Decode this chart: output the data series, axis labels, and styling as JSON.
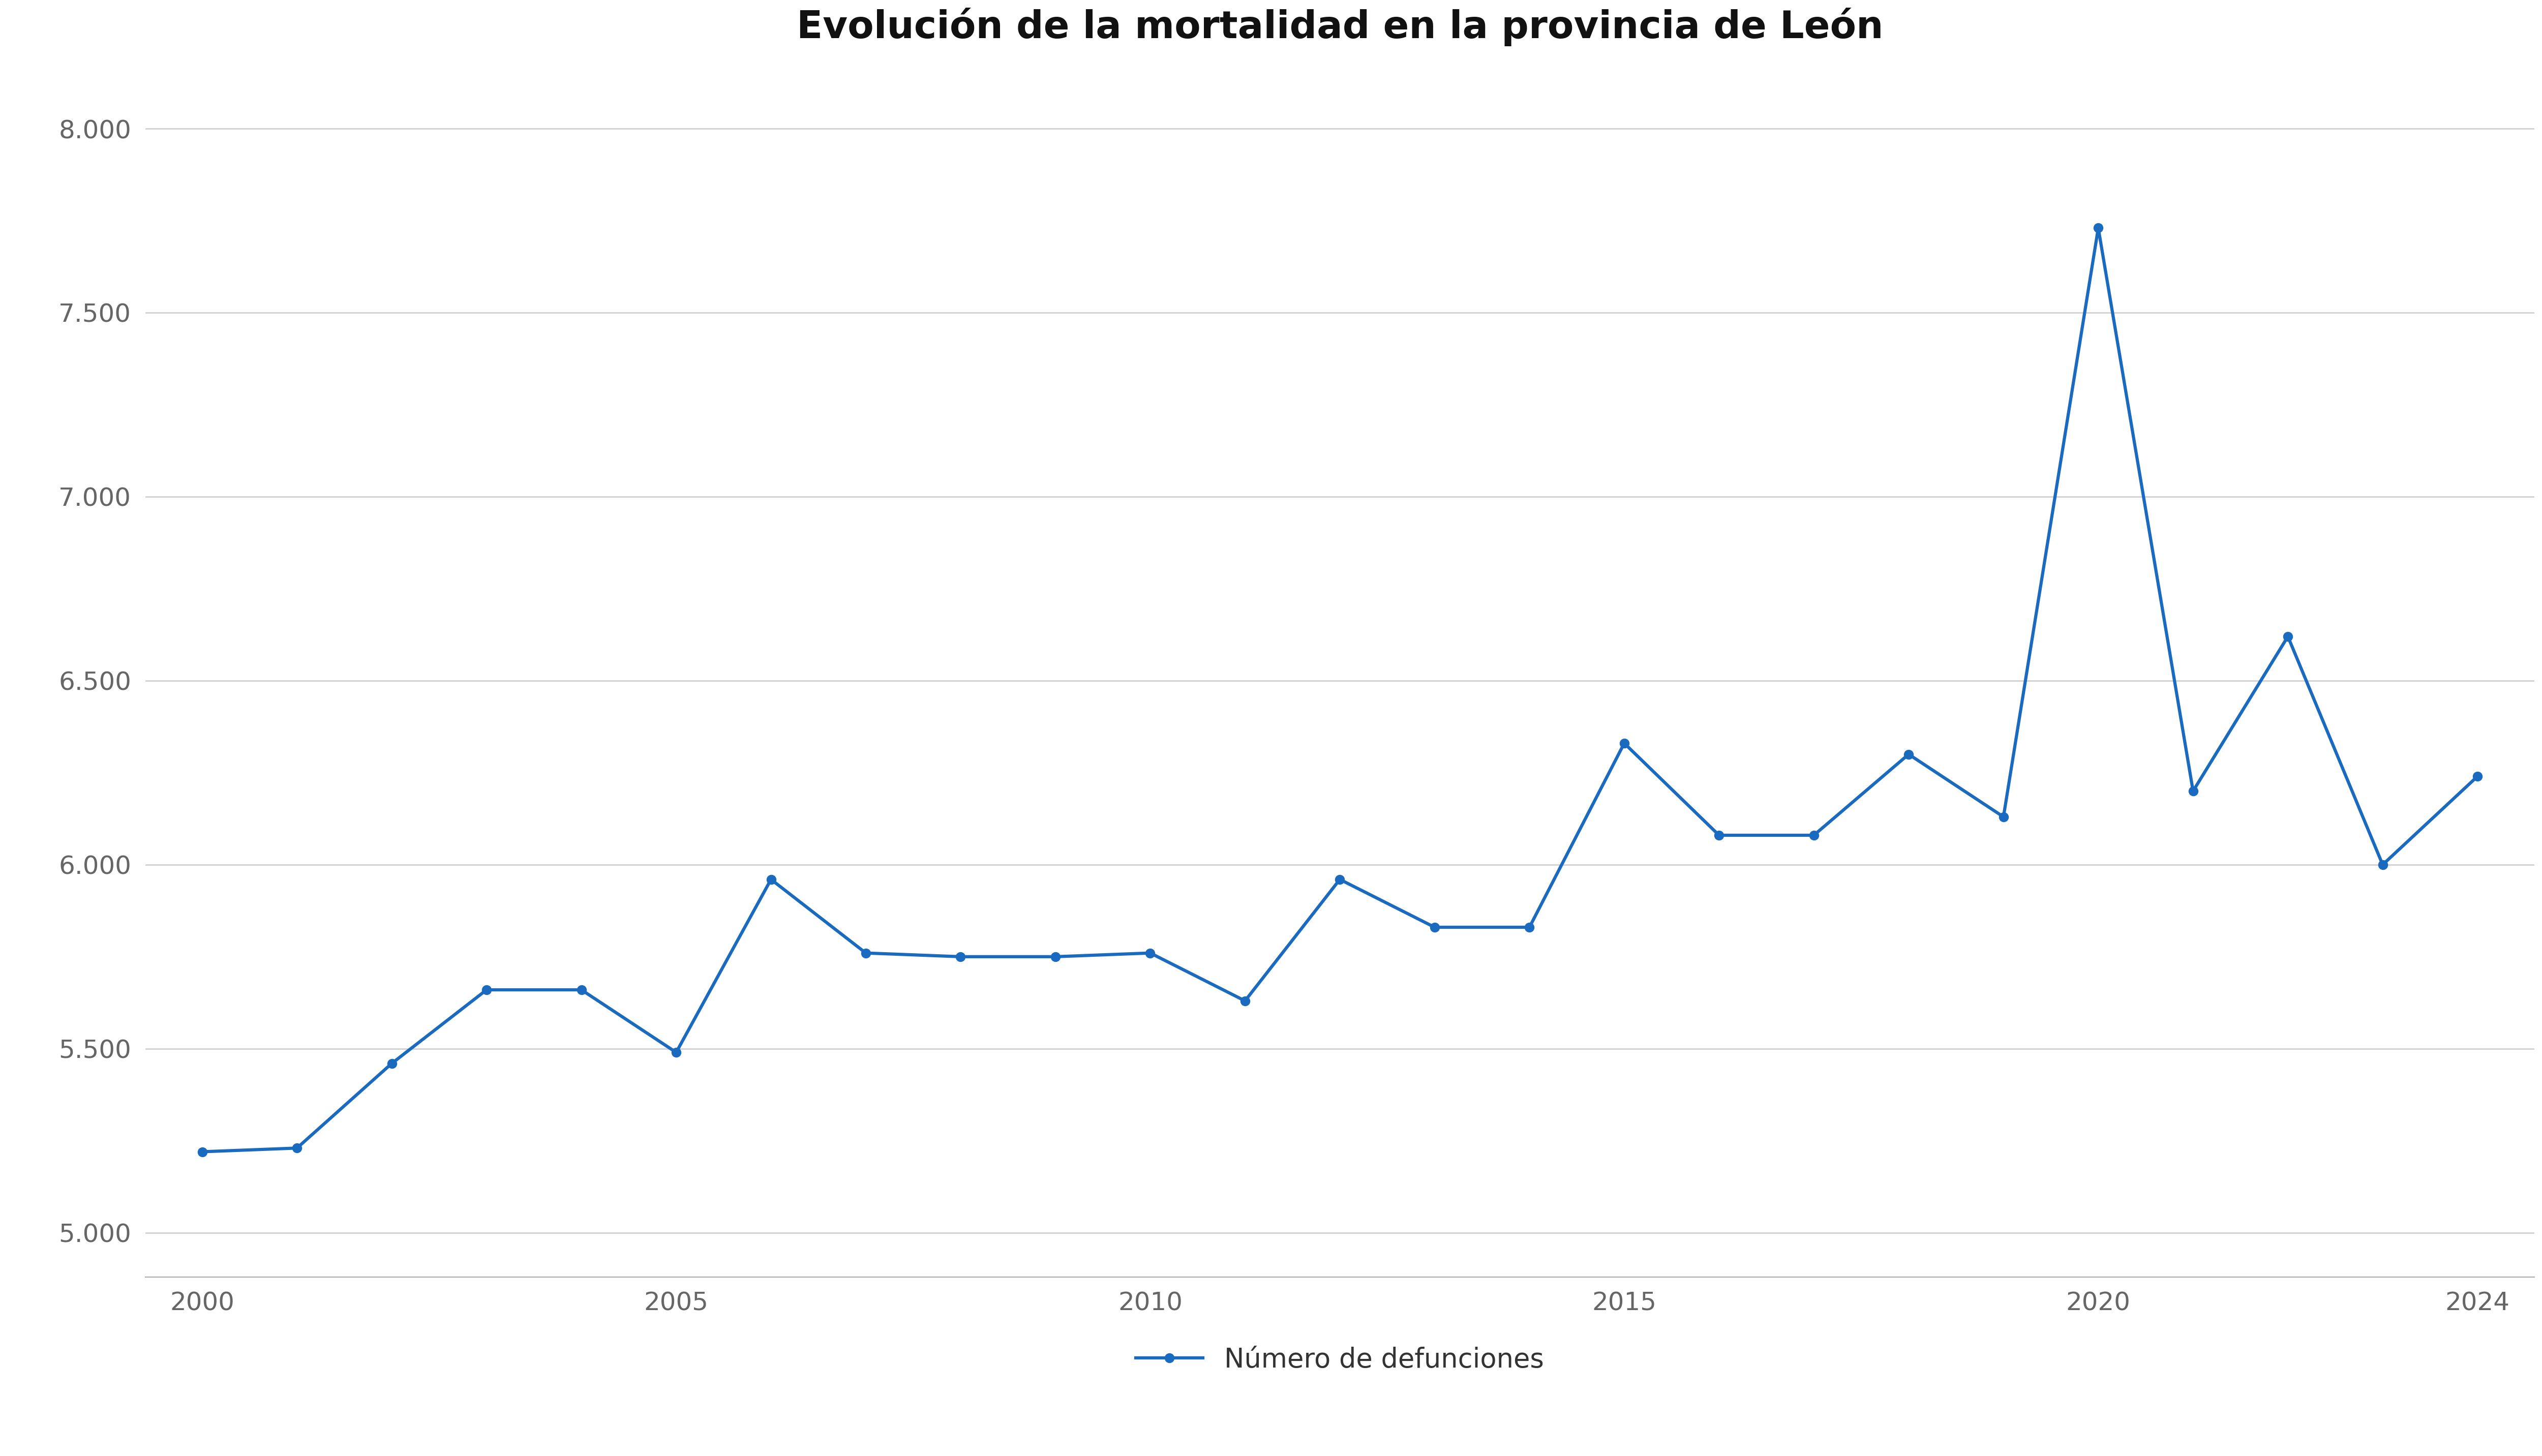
{
  "title": "Evolución de la mortalidad en la provincia de León",
  "years": [
    2000,
    2001,
    2002,
    2003,
    2004,
    2005,
    2006,
    2007,
    2008,
    2009,
    2010,
    2011,
    2012,
    2013,
    2014,
    2015,
    2016,
    2017,
    2018,
    2019,
    2020,
    2021,
    2022,
    2023,
    2024
  ],
  "values": [
    5220,
    5230,
    5460,
    5660,
    5660,
    5490,
    5960,
    5760,
    5750,
    5750,
    5760,
    5630,
    5960,
    5830,
    5830,
    6330,
    6080,
    6080,
    6300,
    6130,
    7730,
    6200,
    6620,
    6000,
    6240
  ],
  "line_color": "#1a6bbf",
  "marker_color": "#1a6bbf",
  "background_color": "#ffffff",
  "legend_label": "Número de defunciones",
  "ytick_labels": [
    "5.000",
    "5.500",
    "6.000",
    "6.500",
    "7.000",
    "7.500",
    "8.000"
  ],
  "ytick_values": [
    5000,
    5500,
    6000,
    6500,
    7000,
    7500,
    8000
  ],
  "ylim": [
    4880,
    8150
  ],
  "xlim": [
    1999.4,
    2024.6
  ],
  "xtick_values": [
    2000,
    2005,
    2010,
    2015,
    2020,
    2024
  ],
  "title_fontsize": 54,
  "tick_fontsize": 36,
  "legend_fontsize": 38,
  "line_width": 4.5,
  "marker_size": 13
}
